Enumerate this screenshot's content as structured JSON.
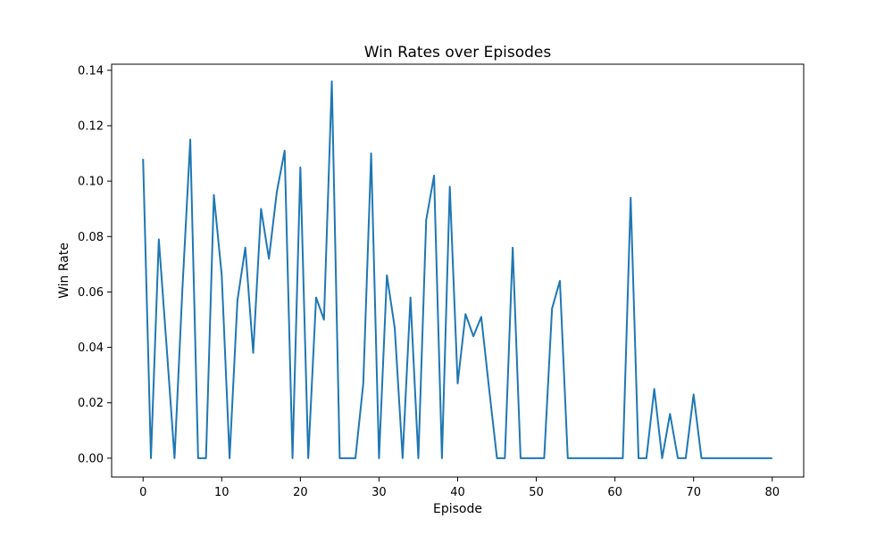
{
  "chart_data": {
    "type": "line",
    "title": "Win Rates over Episodes",
    "xlabel": "Episode",
    "ylabel": "Win Rate",
    "xlim": [
      -4,
      84
    ],
    "ylim": [
      -0.0068,
      0.1422
    ],
    "xticks": [
      0,
      10,
      20,
      30,
      40,
      50,
      60,
      70,
      80
    ],
    "xtick_labels": [
      "0",
      "10",
      "20",
      "30",
      "40",
      "50",
      "60",
      "70",
      "80"
    ],
    "yticks": [
      0.0,
      0.02,
      0.04,
      0.06,
      0.08,
      0.1,
      0.12,
      0.14
    ],
    "ytick_labels": [
      "0.00",
      "0.02",
      "0.04",
      "0.06",
      "0.08",
      "0.10",
      "0.12",
      "0.14"
    ],
    "grid": false,
    "legend": "none",
    "series": [
      {
        "color": "#1f77b4",
        "x": [
          0,
          1,
          2,
          3,
          4,
          5,
          6,
          7,
          8,
          9,
          10,
          11,
          12,
          13,
          14,
          15,
          16,
          17,
          18,
          19,
          20,
          21,
          22,
          23,
          24,
          25,
          26,
          27,
          28,
          29,
          30,
          31,
          32,
          33,
          34,
          35,
          36,
          37,
          38,
          39,
          40,
          41,
          42,
          43,
          44,
          45,
          46,
          47,
          48,
          49,
          50,
          51,
          52,
          53,
          54,
          55,
          56,
          57,
          58,
          59,
          60,
          61,
          62,
          63,
          64,
          65,
          66,
          67,
          68,
          69,
          70,
          71,
          72,
          73,
          74,
          75,
          76,
          77,
          78,
          79,
          80
        ],
        "values": [
          0.108,
          0.0,
          0.079,
          0.04,
          0.0,
          0.061,
          0.115,
          0.0,
          0.0,
          0.095,
          0.066,
          0.0,
          0.057,
          0.076,
          0.038,
          0.09,
          0.072,
          0.096,
          0.111,
          0.0,
          0.105,
          0.0,
          0.058,
          0.05,
          0.136,
          0.0,
          0.0,
          0.0,
          0.027,
          0.11,
          0.0,
          0.066,
          0.047,
          0.0,
          0.058,
          0.0,
          0.086,
          0.102,
          0.0,
          0.098,
          0.027,
          0.052,
          0.044,
          0.051,
          0.025,
          0.0,
          0.0,
          0.076,
          0.0,
          0.0,
          0.0,
          0.0,
          0.054,
          0.064,
          0.0,
          0.0,
          0.0,
          0.0,
          0.0,
          0.0,
          0.0,
          0.0,
          0.094,
          0.0,
          0.0,
          0.025,
          0.0,
          0.016,
          0.0,
          0.0,
          0.023,
          0.0,
          0.0,
          0.0,
          0.0,
          0.0,
          0.0,
          0.0,
          0.0,
          0.0,
          0.0
        ]
      }
    ]
  }
}
